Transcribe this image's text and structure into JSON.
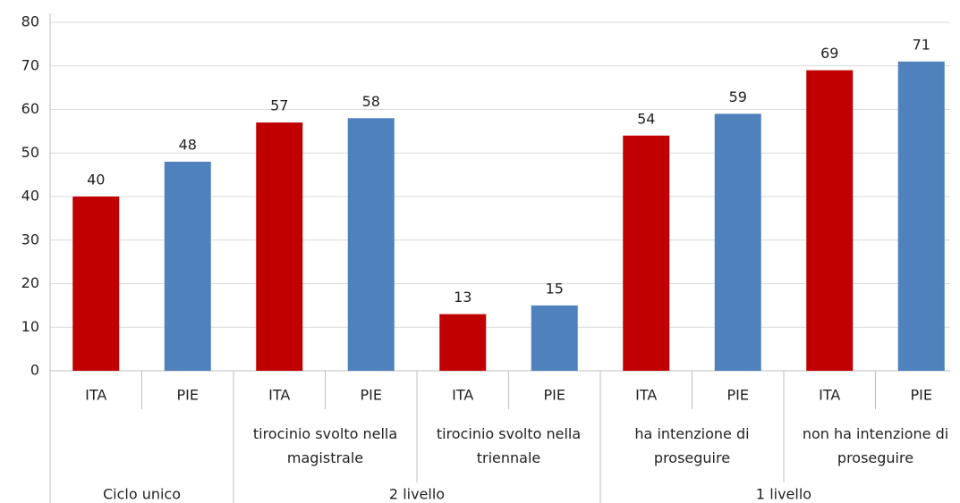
{
  "chart_data": {
    "type": "bar",
    "categories": [
      "ITA",
      "PIE",
      "ITA",
      "PIE",
      "ITA",
      "PIE",
      "ITA",
      "PIE",
      "ITA",
      "PIE"
    ],
    "values": [
      40,
      48,
      57,
      58,
      13,
      15,
      54,
      59,
      69,
      71
    ],
    "colors": {
      "ITA": "#c00000",
      "PIE": "#4f81bd"
    },
    "sections": [
      {
        "name": "Ciclo unico",
        "groups": [
          {
            "name": null,
            "size": 2
          }
        ]
      },
      {
        "name": "2 livello",
        "groups": [
          {
            "name": "tirocinio svolto nella magistrale",
            "size": 2
          },
          {
            "name": "tirocinio svolto nella triennale",
            "size": 2
          }
        ]
      },
      {
        "name": "1 livello",
        "groups": [
          {
            "name": "ha intenzione di proseguire",
            "size": 2
          },
          {
            "name": "non ha intenzione di proseguire",
            "size": 2
          }
        ]
      }
    ],
    "ylim": [
      0,
      80
    ],
    "yticks": [
      0,
      10,
      20,
      30,
      40,
      50,
      60,
      70,
      80
    ],
    "grid": true
  }
}
